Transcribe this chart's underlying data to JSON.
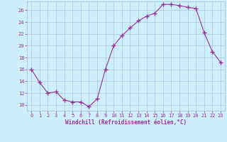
{
  "x": [
    0,
    1,
    2,
    3,
    4,
    5,
    6,
    7,
    8,
    9,
    10,
    11,
    12,
    13,
    14,
    15,
    16,
    17,
    18,
    19,
    20,
    21,
    22,
    23
  ],
  "y": [
    16,
    13.8,
    12.0,
    12.2,
    10.8,
    10.5,
    10.5,
    9.7,
    11.0,
    16.0,
    20.0,
    21.7,
    23.0,
    24.2,
    25.0,
    25.5,
    27.0,
    27.0,
    26.8,
    26.5,
    26.3,
    22.2,
    19.0,
    17.2
  ],
  "line_color": "#993399",
  "marker": "+",
  "marker_size": 4,
  "marker_linewidth": 1.0,
  "line_width": 0.8,
  "bg_color": "#cceeff",
  "grid_color": "#aabbcc",
  "tick_color": "#993399",
  "label_color": "#993399",
  "xlabel": "Windchill (Refroidissement éolien,°C)",
  "ylabel": "",
  "title": "",
  "ylim": [
    9.0,
    27.5
  ],
  "xlim": [
    -0.5,
    23.5
  ],
  "yticks": [
    10,
    12,
    14,
    16,
    18,
    20,
    22,
    24,
    26
  ],
  "xticks": [
    0,
    1,
    2,
    3,
    4,
    5,
    6,
    7,
    8,
    9,
    10,
    11,
    12,
    13,
    14,
    15,
    16,
    17,
    18,
    19,
    20,
    21,
    22,
    23
  ],
  "tick_fontsize": 5.0,
  "xlabel_fontsize": 5.5
}
